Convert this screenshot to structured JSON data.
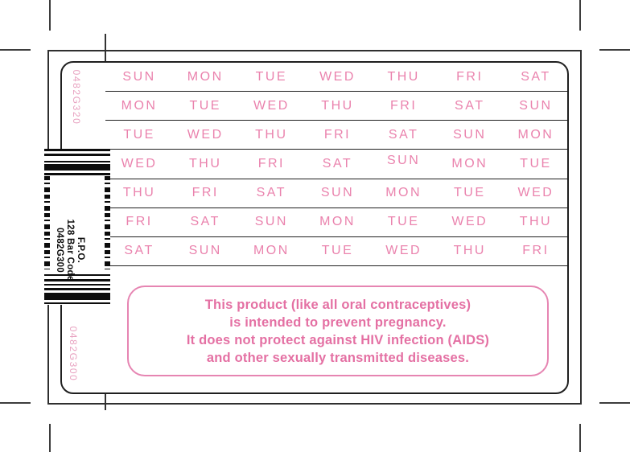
{
  "label": {
    "plate_codes": {
      "top": "0482G320",
      "bottom": "0482G300"
    },
    "barcode": {
      "lines": [
        "F.P.O.",
        "128 Bar Code",
        "0482G300"
      ]
    },
    "day_grid": {
      "rows": [
        [
          "SUN",
          "MON",
          "TUE",
          "WED",
          "THU",
          "FRI",
          "SAT"
        ],
        [
          "MON",
          "TUE",
          "WED",
          "THU",
          "FRI",
          "SAT",
          "SUN"
        ],
        [
          "TUE",
          "WED",
          "THU",
          "FRI",
          "SAT",
          "SUN",
          "MON"
        ],
        [
          "WED",
          "THU",
          "FRI",
          "SAT",
          "SUN",
          "MON",
          "TUE"
        ],
        [
          "THU",
          "FRI",
          "SAT",
          "SUN",
          "MON",
          "TUE",
          "WED"
        ],
        [
          "FRI",
          "SAT",
          "SUN",
          "MON",
          "TUE",
          "WED",
          "THU"
        ],
        [
          "SAT",
          "SUN",
          "MON",
          "TUE",
          "WED",
          "THU",
          "FRI"
        ]
      ]
    },
    "warning": {
      "lines": [
        "This product (like all oral contraceptives)",
        "is intended to prevent pregnancy.",
        "It does not protect against HIV infection (AIDS)",
        "and other sexually transmitted diseases."
      ]
    }
  },
  "colors": {
    "day_text": "#ea82ad",
    "warning_text": "#e470a3",
    "warning_border": "#e685b2",
    "plate_code_text": "#e8a2c0",
    "line_ink": "#222222"
  }
}
